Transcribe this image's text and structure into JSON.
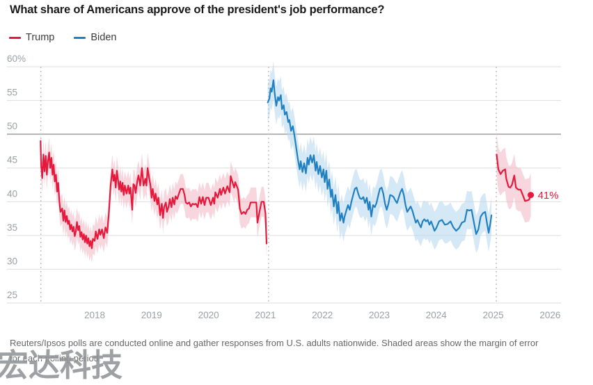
{
  "title": "What share of Americans approve of the president's job performance?",
  "legend": {
    "trump": {
      "label": "Trump",
      "color": "#e6193c"
    },
    "biden": {
      "label": "Biden",
      "color": "#2180c2"
    }
  },
  "footer_lines": [
    "Reuters/Ipsos polls are conducted online and gather responses from U.S. adults nationwide. Shaded areas show the margin of error",
    "for each polling period."
  ],
  "watermark": "宏达科技",
  "chart_data": {
    "type": "line",
    "title": "What share of Americans approve of the president's job performance?",
    "xlabel": "",
    "ylabel": "",
    "ylim": [
      25,
      60
    ],
    "xlim": [
      2016.6,
      2026.2
    ],
    "grid": true,
    "legend_position": "top-left",
    "y_ticks": [
      {
        "label": "60%",
        "value": 60
      },
      {
        "label": "55",
        "value": 55
      },
      {
        "label": "50",
        "value": 50
      },
      {
        "label": "45",
        "value": 45
      },
      {
        "label": "40",
        "value": 40
      },
      {
        "label": "35",
        "value": 35
      },
      {
        "label": "30",
        "value": 30
      },
      {
        "label": "25",
        "value": 25
      }
    ],
    "x_ticks": [
      {
        "label": "2018",
        "value": 2018
      },
      {
        "label": "2019",
        "value": 2019
      },
      {
        "label": "2020",
        "value": 2020
      },
      {
        "label": "2021",
        "value": 2021
      },
      {
        "label": "2022",
        "value": 2022
      },
      {
        "label": "2023",
        "value": 2023
      },
      {
        "label": "2024",
        "value": 2024
      },
      {
        "label": "2025",
        "value": 2025
      },
      {
        "label": "2026",
        "value": 2026
      }
    ],
    "emphasized_gridline": 50,
    "term_start_lines": [
      2017.055,
      2021.055,
      2025.055
    ],
    "series": [
      {
        "id": "trump-term1",
        "name": "Trump",
        "color": "#e6193c",
        "band_color": "#f2bac7",
        "moe": 2.2,
        "x": [
          2017.05,
          2017.06,
          2017.08,
          2017.1,
          2017.12,
          2017.14,
          2017.16,
          2017.18,
          2017.2,
          2017.22,
          2017.24,
          2017.26,
          2017.28,
          2017.3,
          2017.32,
          2017.34,
          2017.36,
          2017.38,
          2017.4,
          2017.43,
          2017.45,
          2017.47,
          2017.49,
          2017.51,
          2017.53,
          2017.55,
          2017.57,
          2017.59,
          2017.61,
          2017.63,
          2017.65,
          2017.67,
          2017.69,
          2017.71,
          2017.73,
          2017.75,
          2017.77,
          2017.79,
          2017.81,
          2017.83,
          2017.85,
          2017.87,
          2017.89,
          2017.91,
          2017.93,
          2017.95,
          2017.97,
          2018.0,
          2018.02,
          2018.05,
          2018.08,
          2018.1,
          2018.13,
          2018.16,
          2018.19,
          2018.22,
          2018.25,
          2018.28,
          2018.31,
          2018.33,
          2018.35,
          2018.37,
          2018.39,
          2018.41,
          2018.43,
          2018.45,
          2018.47,
          2018.49,
          2018.51,
          2018.53,
          2018.56,
          2018.59,
          2018.61,
          2018.63,
          2018.66,
          2018.68,
          2018.7,
          2018.72,
          2018.75,
          2018.77,
          2018.8,
          2018.83,
          2018.86,
          2018.89,
          2018.91,
          2018.93,
          2018.96,
          2018.98,
          2019.0,
          2019.02,
          2019.05,
          2019.07,
          2019.1,
          2019.12,
          2019.15,
          2019.18,
          2019.2,
          2019.22,
          2019.25,
          2019.27,
          2019.3,
          2019.32,
          2019.35,
          2019.37,
          2019.4,
          2019.42,
          2019.45,
          2019.48,
          2019.51,
          2019.55,
          2019.58,
          2019.6,
          2019.63,
          2019.66,
          2019.69,
          2019.72,
          2019.75,
          2019.78,
          2019.81,
          2019.84,
          2019.87,
          2019.9,
          2019.93,
          2019.96,
          2020.0,
          2020.04,
          2020.08,
          2020.1,
          2020.12,
          2020.16,
          2020.2,
          2020.22,
          2020.26,
          2020.29,
          2020.33,
          2020.37,
          2020.39,
          2020.43,
          2020.45,
          2020.47,
          2020.52,
          2020.55,
          2020.58,
          2020.62,
          2020.65,
          2020.68,
          2020.71,
          2020.74,
          2020.8,
          2020.84,
          2020.86,
          2020.9,
          2020.93,
          2020.97,
          2021.0,
          2021.02
        ],
        "y": [
          49.0,
          45.4,
          43.5,
          47.0,
          44.5,
          46.8,
          44.0,
          46.0,
          47.3,
          45.0,
          46.5,
          44.0,
          45.5,
          43.0,
          44.0,
          41.5,
          42.8,
          40.0,
          38.5,
          39.0,
          37.2,
          38.7,
          37.0,
          37.9,
          36.7,
          37.2,
          35.9,
          36.6,
          35.6,
          36.3,
          34.9,
          35.6,
          37.0,
          35.8,
          36.4,
          34.8,
          35.5,
          34.4,
          35.2,
          34.0,
          35.0,
          33.8,
          34.6,
          33.4,
          34.2,
          33.1,
          34.5,
          34.2,
          35.6,
          34.5,
          35.9,
          35.1,
          35.9,
          34.6,
          36.2,
          35.4,
          38.3,
          42.4,
          44.8,
          43.1,
          44.0,
          42.1,
          44.6,
          43.3,
          41.8,
          43.0,
          41.5,
          42.8,
          41.0,
          42.4,
          41.2,
          42.4,
          41.2,
          42.1,
          38.8,
          42.6,
          42.4,
          41.3,
          43.1,
          43.9,
          42.4,
          45.0,
          42.4,
          43.4,
          42.4,
          45.0,
          43.4,
          42.4,
          40.6,
          41.9,
          40.1,
          41.2,
          39.6,
          40.6,
          38.0,
          39.7,
          37.6,
          39.2,
          39.9,
          38.5,
          39.3,
          40.4,
          39.2,
          40.6,
          39.6,
          40.8,
          40.4,
          41.2,
          41.9,
          41.9,
          41.0,
          39.9,
          39.7,
          39.9,
          39.3,
          39.7,
          39.6,
          39.7,
          39.2,
          40.7,
          39.7,
          40.7,
          39.5,
          40.6,
          40.6,
          39.5,
          40.6,
          39.7,
          41.4,
          40.6,
          41.9,
          41.0,
          42.1,
          41.2,
          42.3,
          41.4,
          43.8,
          42.6,
          42.1,
          42.9,
          41.8,
          39.0,
          38.2,
          38.5,
          38.2,
          38.8,
          39.0,
          39.9,
          39.9,
          39.9,
          36.9,
          38.7,
          40.0,
          40.0,
          38.3,
          33.8
        ]
      },
      {
        "id": "biden",
        "name": "Biden",
        "color": "#2180c2",
        "band_color": "#b9d8ee",
        "moe": 2.8,
        "x": [
          2021.04,
          2021.07,
          2021.09,
          2021.11,
          2021.14,
          2021.16,
          2021.19,
          2021.22,
          2021.24,
          2021.27,
          2021.29,
          2021.32,
          2021.34,
          2021.37,
          2021.4,
          2021.42,
          2021.45,
          2021.48,
          2021.51,
          2021.54,
          2021.57,
          2021.6,
          2021.62,
          2021.65,
          2021.68,
          2021.71,
          2021.74,
          2021.76,
          2021.79,
          2021.82,
          2021.85,
          2021.88,
          2021.9,
          2021.93,
          2021.96,
          2021.99,
          2022.02,
          2022.04,
          2022.07,
          2022.09,
          2022.12,
          2022.15,
          2022.17,
          2022.2,
          2022.23,
          2022.26,
          2022.28,
          2022.31,
          2022.34,
          2022.37,
          2022.39,
          2022.42,
          2022.45,
          2022.48,
          2022.51,
          2022.54,
          2022.57,
          2022.6,
          2022.63,
          2022.66,
          2022.69,
          2022.72,
          2022.75,
          2022.78,
          2022.81,
          2022.83,
          2022.86,
          2022.89,
          2022.92,
          2022.95,
          2022.98,
          2023.01,
          2023.04,
          2023.07,
          2023.1,
          2023.13,
          2023.16,
          2023.19,
          2023.22,
          2023.25,
          2023.28,
          2023.31,
          2023.34,
          2023.37,
          2023.4,
          2023.43,
          2023.46,
          2023.49,
          2023.52,
          2023.55,
          2023.58,
          2023.61,
          2023.64,
          2023.67,
          2023.7,
          2023.73,
          2023.76,
          2023.79,
          2023.82,
          2023.85,
          2023.88,
          2023.91,
          2023.94,
          2023.97,
          2024.0,
          2024.05,
          2024.1,
          2024.15,
          2024.2,
          2024.25,
          2024.3,
          2024.35,
          2024.4,
          2024.45,
          2024.5,
          2024.54,
          2024.58,
          2024.62,
          2024.66,
          2024.7,
          2024.74,
          2024.78,
          2024.82,
          2024.86,
          2024.89,
          2024.92,
          2024.95,
          2024.97
        ],
        "y": [
          54.7,
          55.3,
          56.8,
          56.3,
          58.0,
          56.2,
          54.2,
          55.5,
          55.0,
          55.8,
          53.7,
          54.3,
          52.9,
          53.3,
          51.8,
          52.1,
          50.5,
          51.2,
          49.8,
          48.0,
          46.3,
          44.8,
          46.0,
          44.4,
          45.7,
          44.2,
          46.5,
          45.5,
          46.9,
          45.8,
          46.9,
          44.6,
          45.9,
          44.1,
          45.3,
          43.6,
          44.8,
          42.9,
          44.6,
          41.9,
          43.3,
          40.7,
          41.8,
          39.3,
          41.0,
          38.3,
          40.0,
          37.2,
          38.3,
          36.9,
          37.8,
          38.7,
          39.5,
          38.8,
          40.0,
          41.0,
          41.9,
          42.1,
          41.2,
          40.5,
          40.4,
          40.7,
          39.8,
          40.6,
          38.8,
          40.0,
          37.8,
          39.5,
          39.2,
          39.8,
          40.9,
          41.9,
          42.1,
          41.2,
          39.7,
          38.8,
          39.7,
          41.0,
          40.9,
          40.7,
          40.2,
          39.8,
          40.6,
          41.4,
          41.9,
          41.0,
          39.5,
          38.5,
          38.9,
          39.3,
          38.7,
          37.8,
          36.9,
          37.3,
          36.7,
          36.2,
          37.1,
          37.4,
          37.1,
          37.3,
          36.6,
          37.1,
          36.4,
          35.7,
          36.1,
          37.1,
          37.3,
          36.6,
          36.7,
          37.1,
          36.2,
          35.7,
          36.1,
          36.9,
          37.1,
          38.8,
          38.7,
          38.8,
          37.0,
          35.2,
          35.9,
          37.8,
          38.3,
          38.5,
          36.9,
          35.4,
          36.8,
          38.0
        ]
      },
      {
        "id": "trump-term2",
        "name": "Trump",
        "color": "#e6193c",
        "band_color": "#f2bac7",
        "moe": 3.2,
        "x": [
          2025.06,
          2025.09,
          2025.13,
          2025.17,
          2025.21,
          2025.23,
          2025.27,
          2025.3,
          2025.33,
          2025.37,
          2025.4,
          2025.44,
          2025.48,
          2025.52,
          2025.56,
          2025.6,
          2025.63,
          2025.66
        ],
        "y": [
          47.0,
          44.8,
          44.1,
          44.6,
          44.8,
          43.4,
          42.2,
          42.1,
          42.5,
          43.9,
          42.1,
          41.8,
          41.8,
          41.0,
          40.1,
          40.2,
          40.3,
          41.0
        ]
      }
    ],
    "end_marker": {
      "x": 2025.66,
      "y": 41,
      "label": "41%",
      "color": "#e6193c"
    }
  }
}
